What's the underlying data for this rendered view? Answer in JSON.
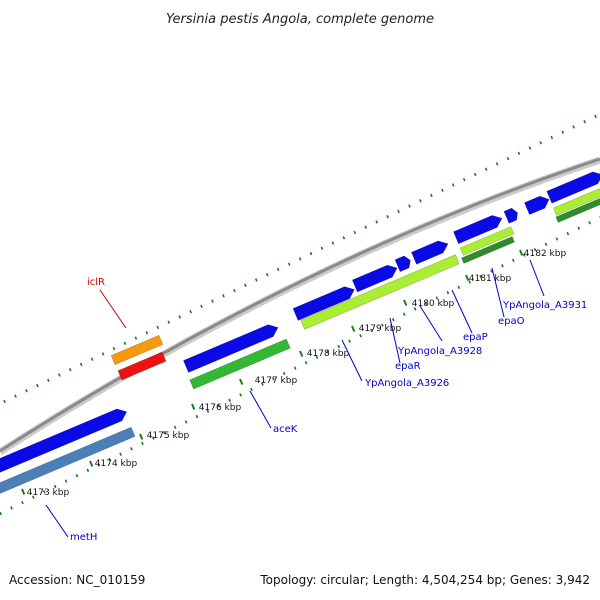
{
  "title": "Yersinia pestis Angola, complete genome",
  "footer": {
    "accession": "Accession: NC_010159",
    "topology": "Topology: circular; Length: 4,504,254 bp; Genes: 3,942"
  },
  "scale": {
    "labels": [
      "4173 kbp",
      "4174 kbp",
      "4175 kbp",
      "4176 kbp",
      "4177 kbp",
      "4178 kbp",
      "4179 kbp",
      "4180 kbp",
      "4181 kbp",
      "4182 kbp"
    ]
  },
  "genes": {
    "labels": [
      "iclR",
      "metH",
      "aceK",
      "YpAngola_A3926",
      "epaR",
      "YpAngola_A3928",
      "epaP",
      "epaO",
      "YpAngola_A3931"
    ]
  },
  "colors": {
    "cds": "#0a0ae6",
    "metH_track": "#4a7fb8",
    "green": "#33b833",
    "lightgreen": "#aaee33",
    "darkgreen": "#2e8b2e",
    "orange": "#f59a0f",
    "red": "#ee1111",
    "backbone": "#8a8a8a",
    "ticks": "#1a7a1a",
    "label_red": "#cc0000",
    "label_blue": "#0000cc"
  }
}
